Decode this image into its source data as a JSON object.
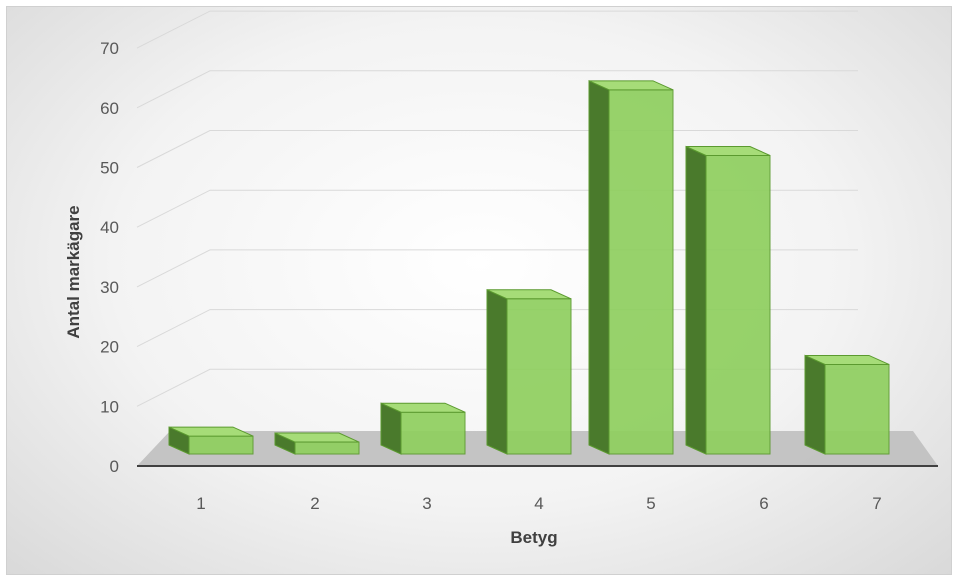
{
  "chart_data": {
    "type": "bar",
    "title": "",
    "xlabel": "Betyg",
    "ylabel": "Antal markägare",
    "categories": [
      "1",
      "2",
      "3",
      "4",
      "5",
      "6",
      "7"
    ],
    "values": [
      3,
      2,
      7,
      26,
      61,
      50,
      15
    ],
    "ylim": [
      0,
      70
    ],
    "yticks": [
      "0",
      "10",
      "20",
      "30",
      "40",
      "50",
      "60",
      "70"
    ],
    "grid": true,
    "legend": "none",
    "colors": {
      "bar_front": "#8fcf5f",
      "bar_top": "#a6dc78",
      "bar_side": "#4a7a2c",
      "bar_edge": "#5b9a2f",
      "gridline": "#d9d9d9",
      "floor": "#bfbfbf",
      "axis": "#404040"
    }
  }
}
